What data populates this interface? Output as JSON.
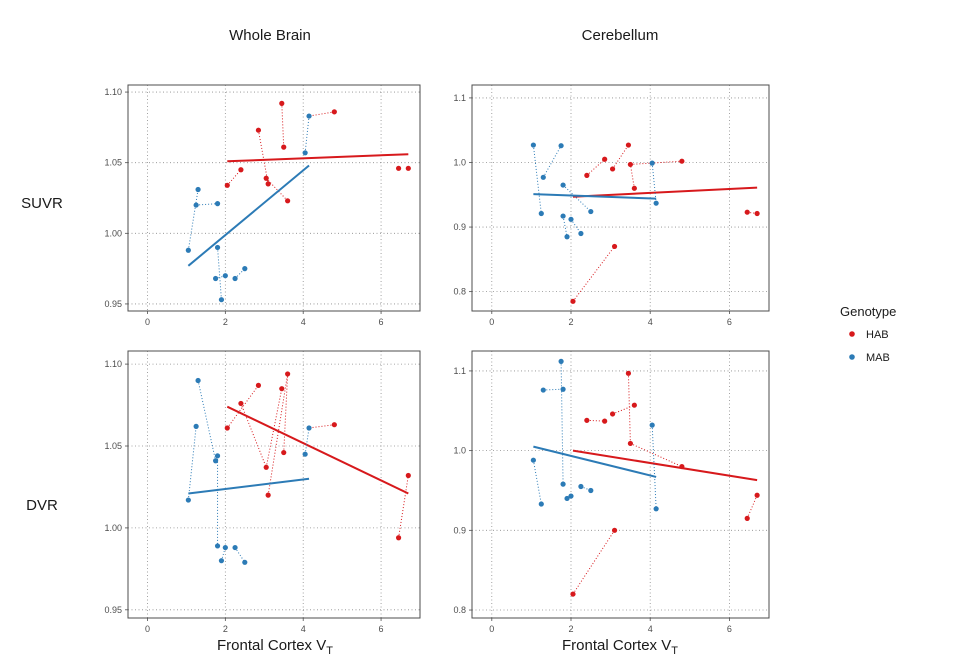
{
  "figure": {
    "column_titles": [
      "Whole Brain",
      "Cerebellum"
    ],
    "row_titles": [
      "SUVR",
      "DVR"
    ],
    "x_label": "Frontal Cortex V",
    "x_label_subscript": "T",
    "legend": {
      "title": "Genotype",
      "entries": [
        {
          "label": "HAB",
          "color": "#d7191c"
        },
        {
          "label": "MAB",
          "color": "#2c7bb6"
        }
      ]
    }
  },
  "chart_data": [
    {
      "type": "scatter",
      "title": "Whole Brain",
      "ylabel": "SUVR",
      "xlabel": "Frontal Cortex V_T",
      "xlim": [
        -0.5,
        7.0
      ],
      "ylim": [
        0.945,
        1.105
      ],
      "xticks": [
        "0",
        "2",
        "4",
        "6"
      ],
      "yticks": [
        "0.95",
        "1.00",
        "1.05",
        "1.10"
      ],
      "ytick_values": [
        0.95,
        1.0,
        1.05,
        1.1
      ],
      "grid": "dotted",
      "series": [
        {
          "name": "HAB",
          "points": [
            [
              2.05,
              1.034
            ],
            [
              2.4,
              1.045
            ],
            [
              2.85,
              1.073
            ],
            [
              3.05,
              1.039
            ],
            [
              3.1,
              1.035
            ],
            [
              3.45,
              1.092
            ],
            [
              3.5,
              1.061
            ],
            [
              3.6,
              1.023
            ],
            [
              4.8,
              1.086
            ],
            [
              6.45,
              1.046
            ],
            [
              6.7,
              1.046
            ]
          ],
          "pairs": [
            [
              [
                2.05,
                1.034
              ],
              [
                2.4,
                1.045
              ]
            ],
            [
              [
                2.85,
                1.073
              ],
              [
                3.1,
                1.035
              ]
            ],
            [
              [
                3.45,
                1.092
              ],
              [
                3.5,
                1.061
              ]
            ],
            [
              [
                3.05,
                1.039
              ],
              [
                3.6,
                1.023
              ]
            ],
            [
              [
                4.8,
                1.086
              ],
              [
                4.15,
                1.083
              ]
            ]
          ],
          "fit": [
            [
              2.05,
              1.051
            ],
            [
              6.7,
              1.056
            ]
          ]
        },
        {
          "name": "MAB",
          "points": [
            [
              1.05,
              0.988
            ],
            [
              1.25,
              1.02
            ],
            [
              1.3,
              1.031
            ],
            [
              1.75,
              0.968
            ],
            [
              1.8,
              1.021
            ],
            [
              1.8,
              0.99
            ],
            [
              1.9,
              0.953
            ],
            [
              2.0,
              0.97
            ],
            [
              2.25,
              0.968
            ],
            [
              2.5,
              0.975
            ],
            [
              4.05,
              1.057
            ],
            [
              4.15,
              1.083
            ]
          ],
          "pairs": [
            [
              [
                1.05,
                0.988
              ],
              [
                1.3,
                1.031
              ]
            ],
            [
              [
                1.25,
                1.02
              ],
              [
                1.8,
                1.021
              ]
            ],
            [
              [
                1.8,
                0.99
              ],
              [
                1.9,
                0.953
              ]
            ],
            [
              [
                1.75,
                0.968
              ],
              [
                2.0,
                0.97
              ]
            ],
            [
              [
                2.25,
                0.968
              ],
              [
                2.5,
                0.975
              ]
            ],
            [
              [
                4.05,
                1.057
              ],
              [
                4.15,
                1.083
              ]
            ]
          ],
          "fit": [
            [
              1.05,
              0.977
            ],
            [
              4.15,
              1.048
            ]
          ]
        }
      ]
    },
    {
      "type": "scatter",
      "title": "Cerebellum",
      "ylabel": "SUVR",
      "xlabel": "Frontal Cortex V_T",
      "xlim": [
        -0.5,
        7.0
      ],
      "ylim": [
        0.77,
        1.12
      ],
      "xticks": [
        "0",
        "2",
        "4",
        "6"
      ],
      "yticks": [
        "0.8",
        "0.9",
        "1.0",
        "1.1"
      ],
      "ytick_values": [
        0.8,
        0.9,
        1.0,
        1.1
      ],
      "grid": "dotted",
      "series": [
        {
          "name": "HAB",
          "points": [
            [
              2.05,
              0.785
            ],
            [
              2.4,
              0.98
            ],
            [
              2.85,
              1.005
            ],
            [
              3.05,
              0.99
            ],
            [
              3.1,
              0.87
            ],
            [
              3.45,
              1.027
            ],
            [
              3.5,
              0.997
            ],
            [
              3.6,
              0.96
            ],
            [
              4.8,
              1.002
            ],
            [
              6.45,
              0.923
            ],
            [
              6.7,
              0.921
            ]
          ],
          "pairs": [
            [
              [
                2.05,
                0.785
              ],
              [
                3.1,
                0.87
              ]
            ],
            [
              [
                2.4,
                0.98
              ],
              [
                2.85,
                1.005
              ]
            ],
            [
              [
                3.05,
                0.99
              ],
              [
                3.45,
                1.027
              ]
            ],
            [
              [
                3.5,
                0.997
              ],
              [
                4.8,
                1.002
              ]
            ],
            [
              [
                3.6,
                0.96
              ],
              [
                3.5,
                0.997
              ]
            ],
            [
              [
                6.45,
                0.923
              ],
              [
                6.7,
                0.921
              ]
            ]
          ],
          "fit": [
            [
              2.05,
              0.947
            ],
            [
              6.7,
              0.961
            ]
          ]
        },
        {
          "name": "MAB",
          "points": [
            [
              1.05,
              1.027
            ],
            [
              1.25,
              0.921
            ],
            [
              1.3,
              0.977
            ],
            [
              1.75,
              1.026
            ],
            [
              1.8,
              0.965
            ],
            [
              1.8,
              0.917
            ],
            [
              1.9,
              0.885
            ],
            [
              2.0,
              0.912
            ],
            [
              2.25,
              0.89
            ],
            [
              2.5,
              0.924
            ],
            [
              4.05,
              0.999
            ],
            [
              4.15,
              0.937
            ]
          ],
          "pairs": [
            [
              [
                1.05,
                1.027
              ],
              [
                1.25,
                0.921
              ]
            ],
            [
              [
                1.3,
                0.977
              ],
              [
                1.75,
                1.026
              ]
            ],
            [
              [
                1.8,
                0.917
              ],
              [
                1.9,
                0.885
              ]
            ],
            [
              [
                2.0,
                0.912
              ],
              [
                2.25,
                0.89
              ]
            ],
            [
              [
                1.8,
                0.965
              ],
              [
                2.5,
                0.924
              ]
            ],
            [
              [
                4.05,
                0.999
              ],
              [
                4.15,
                0.937
              ]
            ]
          ],
          "fit": [
            [
              1.05,
              0.951
            ],
            [
              4.15,
              0.944
            ]
          ]
        }
      ]
    },
    {
      "type": "scatter",
      "title": "Whole Brain",
      "ylabel": "DVR",
      "xlabel": "Frontal Cortex V_T",
      "xlim": [
        -0.5,
        7.0
      ],
      "ylim": [
        0.945,
        1.108
      ],
      "xticks": [
        "0",
        "2",
        "4",
        "6"
      ],
      "yticks": [
        "0.95",
        "1.00",
        "1.05",
        "1.10"
      ],
      "ytick_values": [
        0.95,
        1.0,
        1.05,
        1.1
      ],
      "grid": "dotted",
      "series": [
        {
          "name": "HAB",
          "points": [
            [
              2.05,
              1.061
            ],
            [
              2.4,
              1.076
            ],
            [
              2.85,
              1.087
            ],
            [
              3.05,
              1.037
            ],
            [
              3.1,
              1.02
            ],
            [
              3.45,
              1.085
            ],
            [
              3.5,
              1.046
            ],
            [
              3.6,
              1.094
            ],
            [
              4.8,
              1.063
            ],
            [
              6.45,
              0.994
            ],
            [
              6.7,
              1.032
            ]
          ],
          "pairs": [
            [
              [
                2.05,
                1.061
              ],
              [
                2.85,
                1.087
              ]
            ],
            [
              [
                3.05,
                1.037
              ],
              [
                3.45,
                1.085
              ]
            ],
            [
              [
                3.1,
                1.02
              ],
              [
                3.6,
                1.094
              ]
            ],
            [
              [
                3.5,
                1.046
              ],
              [
                3.6,
                1.094
              ]
            ],
            [
              [
                2.4,
                1.076
              ],
              [
                3.05,
                1.037
              ]
            ],
            [
              [
                4.8,
                1.063
              ],
              [
                4.15,
                1.061
              ]
            ],
            [
              [
                6.45,
                0.994
              ],
              [
                6.7,
                1.032
              ]
            ]
          ],
          "fit": [
            [
              2.05,
              1.074
            ],
            [
              6.7,
              1.021
            ]
          ]
        },
        {
          "name": "MAB",
          "points": [
            [
              1.05,
              1.017
            ],
            [
              1.25,
              1.062
            ],
            [
              1.3,
              1.09
            ],
            [
              1.75,
              1.041
            ],
            [
              1.8,
              1.044
            ],
            [
              1.8,
              0.989
            ],
            [
              1.9,
              0.98
            ],
            [
              2.0,
              0.988
            ],
            [
              2.25,
              0.988
            ],
            [
              2.5,
              0.979
            ],
            [
              4.05,
              1.045
            ],
            [
              4.15,
              1.061
            ]
          ],
          "pairs": [
            [
              [
                1.05,
                1.017
              ],
              [
                1.25,
                1.062
              ]
            ],
            [
              [
                1.3,
                1.09
              ],
              [
                1.75,
                1.041
              ]
            ],
            [
              [
                1.8,
                1.044
              ],
              [
                1.8,
                0.989
              ]
            ],
            [
              [
                1.9,
                0.98
              ],
              [
                2.0,
                0.988
              ]
            ],
            [
              [
                2.25,
                0.988
              ],
              [
                2.5,
                0.979
              ]
            ],
            [
              [
                4.05,
                1.045
              ],
              [
                4.15,
                1.061
              ]
            ]
          ],
          "fit": [
            [
              1.05,
              1.021
            ],
            [
              4.15,
              1.03
            ]
          ]
        }
      ]
    },
    {
      "type": "scatter",
      "title": "Cerebellum",
      "ylabel": "DVR",
      "xlabel": "Frontal Cortex V_T",
      "xlim": [
        -0.5,
        7.0
      ],
      "ylim": [
        0.79,
        1.125
      ],
      "xticks": [
        "0",
        "2",
        "4",
        "6"
      ],
      "yticks": [
        "0.8",
        "0.9",
        "1.0",
        "1.1"
      ],
      "ytick_values": [
        0.8,
        0.9,
        1.0,
        1.1
      ],
      "grid": "dotted",
      "series": [
        {
          "name": "HAB",
          "points": [
            [
              2.05,
              0.82
            ],
            [
              2.4,
              1.038
            ],
            [
              2.85,
              1.037
            ],
            [
              3.05,
              1.046
            ],
            [
              3.1,
              0.9
            ],
            [
              3.45,
              1.097
            ],
            [
              3.5,
              1.009
            ],
            [
              3.6,
              1.057
            ],
            [
              4.8,
              0.98
            ],
            [
              6.45,
              0.915
            ],
            [
              6.7,
              0.944
            ]
          ],
          "pairs": [
            [
              [
                2.05,
                0.82
              ],
              [
                3.1,
                0.9
              ]
            ],
            [
              [
                2.4,
                1.038
              ],
              [
                2.85,
                1.037
              ]
            ],
            [
              [
                3.05,
                1.046
              ],
              [
                3.6,
                1.057
              ]
            ],
            [
              [
                3.45,
                1.097
              ],
              [
                3.5,
                1.009
              ]
            ],
            [
              [
                3.5,
                1.009
              ],
              [
                4.8,
                0.98
              ]
            ],
            [
              [
                6.45,
                0.915
              ],
              [
                6.7,
                0.944
              ]
            ]
          ],
          "fit": [
            [
              2.05,
              1.0
            ],
            [
              6.7,
              0.963
            ]
          ]
        },
        {
          "name": "MAB",
          "points": [
            [
              1.05,
              0.988
            ],
            [
              1.25,
              0.933
            ],
            [
              1.3,
              1.076
            ],
            [
              1.75,
              1.112
            ],
            [
              1.8,
              1.077
            ],
            [
              1.8,
              0.958
            ],
            [
              1.9,
              0.94
            ],
            [
              2.0,
              0.943
            ],
            [
              2.25,
              0.955
            ],
            [
              2.5,
              0.95
            ],
            [
              4.05,
              1.032
            ],
            [
              4.15,
              0.927
            ]
          ],
          "pairs": [
            [
              [
                1.05,
                0.988
              ],
              [
                1.25,
                0.933
              ]
            ],
            [
              [
                1.3,
                1.076
              ],
              [
                1.75,
                1.077
              ]
            ],
            [
              [
                1.75,
                1.112
              ],
              [
                1.8,
                0.958
              ]
            ],
            [
              [
                1.9,
                0.94
              ],
              [
                2.0,
                0.943
              ]
            ],
            [
              [
                2.25,
                0.955
              ],
              [
                2.5,
                0.95
              ]
            ],
            [
              [
                4.05,
                1.032
              ],
              [
                4.15,
                0.927
              ]
            ]
          ],
          "fit": [
            [
              1.05,
              1.005
            ],
            [
              4.15,
              0.967
            ]
          ]
        }
      ]
    }
  ]
}
